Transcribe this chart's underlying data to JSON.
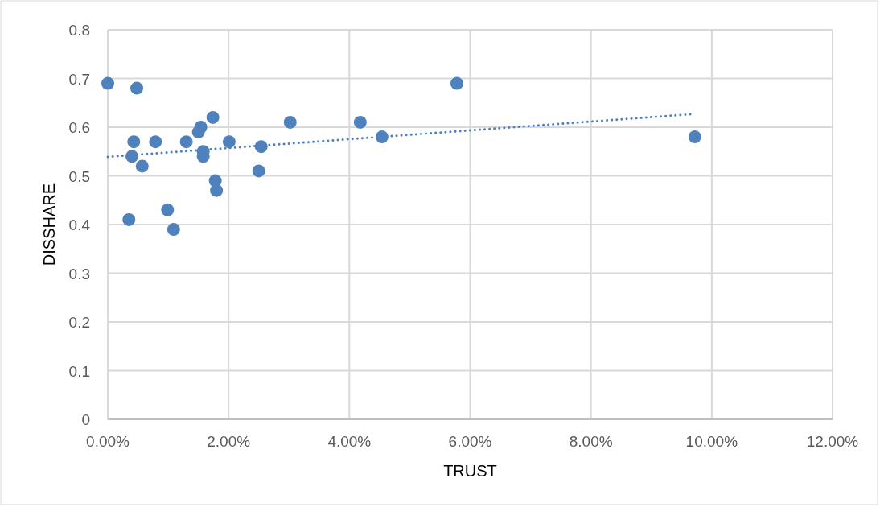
{
  "chart_data": {
    "type": "scatter",
    "xlabel": "TRUST",
    "ylabel": "DISSHARE",
    "xlim": [
      0,
      0.12
    ],
    "xticks": [
      {
        "value": 0,
        "label": "0.00%"
      },
      {
        "value": 0.02,
        "label": "2.00%"
      },
      {
        "value": 0.04,
        "label": "4.00%"
      },
      {
        "value": 0.06,
        "label": "6.00%"
      },
      {
        "value": 0.08,
        "label": "8.00%"
      },
      {
        "value": 0.1,
        "label": "10.00%"
      },
      {
        "value": 0.12,
        "label": "12.00%"
      }
    ],
    "ylim": [
      0,
      0.8
    ],
    "yticks": [
      0,
      0.1,
      0.2,
      0.3,
      0.4,
      0.5,
      0.6,
      0.7,
      0.8
    ],
    "grid": true,
    "marker": "circle",
    "series": [
      {
        "color": "#4f81bd",
        "x": [
          0,
          0.0048,
          0.0043,
          0.004,
          0.0057,
          0.0035,
          0.0079,
          0.0099,
          0.0109,
          0.013,
          0.015,
          0.0154,
          0.0174,
          0.0158,
          0.0158,
          0.0178,
          0.018,
          0.0201,
          0.025,
          0.0254,
          0.0302,
          0.0418,
          0.0454,
          0.0578,
          0.0972
        ],
        "values": [
          0.69,
          0.68,
          0.57,
          0.54,
          0.52,
          0.41,
          0.57,
          0.43,
          0.39,
          0.57,
          0.59,
          0.6,
          0.62,
          0.55,
          0.54,
          0.49,
          0.47,
          0.57,
          0.51,
          0.56,
          0.61,
          0.61,
          0.58,
          0.69,
          0.58
        ]
      },
      {
        "type": "line",
        "color": "#4f81bd",
        "line_style": "dotted",
        "marker": "none",
        "x": [
          0,
          0.097
        ],
        "values": [
          0.539,
          0.627
        ]
      }
    ]
  }
}
